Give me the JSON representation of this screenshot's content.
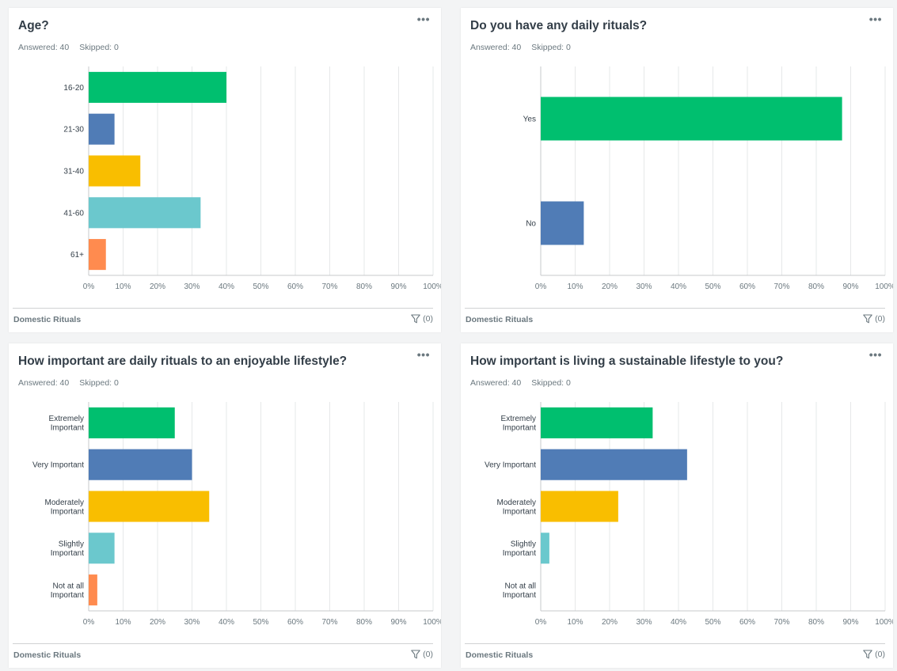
{
  "panels": [
    {
      "title": "Age?",
      "answered": "Answered: 40",
      "skipped": "Skipped: 0",
      "menu": "•••",
      "footer_label": "Domestic Rituals",
      "filter_count": "(0)"
    },
    {
      "title": "Do you have any daily rituals?",
      "answered": "Answered: 40",
      "skipped": "Skipped: 0",
      "menu": "•••",
      "footer_label": "Domestic Rituals",
      "filter_count": "(0)"
    },
    {
      "title": "How important are daily rituals to an enjoyable lifestyle?",
      "answered": "Answered: 40",
      "skipped": "Skipped: 0",
      "menu": "•••",
      "footer_label": "Domestic Rituals",
      "filter_count": "(0)"
    },
    {
      "title": "How important is living a sustainable lifestyle to you?",
      "answered": "Answered: 40",
      "skipped": "Skipped: 0",
      "menu": "•••",
      "footer_label": "Domestic Rituals",
      "filter_count": "(0)"
    }
  ],
  "colors": [
    "#00bf6f",
    "#507cb6",
    "#f9be00",
    "#6bc8cd",
    "#ff8b4f"
  ],
  "chart_data": [
    {
      "type": "bar",
      "orientation": "horizontal",
      "title": "Age?",
      "categories": [
        [
          "16-20"
        ],
        [
          "21-30"
        ],
        [
          "31-40"
        ],
        [
          "41-60"
        ],
        [
          "61+"
        ]
      ],
      "values": [
        40,
        7.5,
        15,
        32.5,
        5
      ],
      "xlim": [
        0,
        100
      ],
      "ticks": [
        "0%",
        "10%",
        "20%",
        "30%",
        "40%",
        "50%",
        "60%",
        "70%",
        "80%",
        "90%",
        "100%"
      ],
      "grid": true
    },
    {
      "type": "bar",
      "orientation": "horizontal",
      "title": "Do you have any daily rituals?",
      "categories": [
        [
          "Yes"
        ],
        [
          "No"
        ]
      ],
      "values": [
        87.5,
        12.5
      ],
      "xlim": [
        0,
        100
      ],
      "ticks": [
        "0%",
        "10%",
        "20%",
        "30%",
        "40%",
        "50%",
        "60%",
        "70%",
        "80%",
        "90%",
        "100%"
      ],
      "grid": true
    },
    {
      "type": "bar",
      "orientation": "horizontal",
      "title": "How important are daily rituals to an enjoyable lifestyle?",
      "categories": [
        [
          "Extremely",
          "Important"
        ],
        [
          "Very Important"
        ],
        [
          "Moderately",
          "Important"
        ],
        [
          "Slightly",
          "Important"
        ],
        [
          "Not at all",
          "Important"
        ]
      ],
      "values": [
        25,
        30,
        35,
        7.5,
        2.5
      ],
      "xlim": [
        0,
        100
      ],
      "ticks": [
        "0%",
        "10%",
        "20%",
        "30%",
        "40%",
        "50%",
        "60%",
        "70%",
        "80%",
        "90%",
        "100%"
      ],
      "grid": true
    },
    {
      "type": "bar",
      "orientation": "horizontal",
      "title": "How important is living a sustainable lifestyle to you?",
      "categories": [
        [
          "Extremely",
          "Important"
        ],
        [
          "Very Important"
        ],
        [
          "Moderately",
          "Important"
        ],
        [
          "Slightly",
          "Important"
        ],
        [
          "Not at all",
          "Important"
        ]
      ],
      "values": [
        32.5,
        42.5,
        22.5,
        2.5,
        0
      ],
      "xlim": [
        0,
        100
      ],
      "ticks": [
        "0%",
        "10%",
        "20%",
        "30%",
        "40%",
        "50%",
        "60%",
        "70%",
        "80%",
        "90%",
        "100%"
      ],
      "grid": true
    }
  ]
}
